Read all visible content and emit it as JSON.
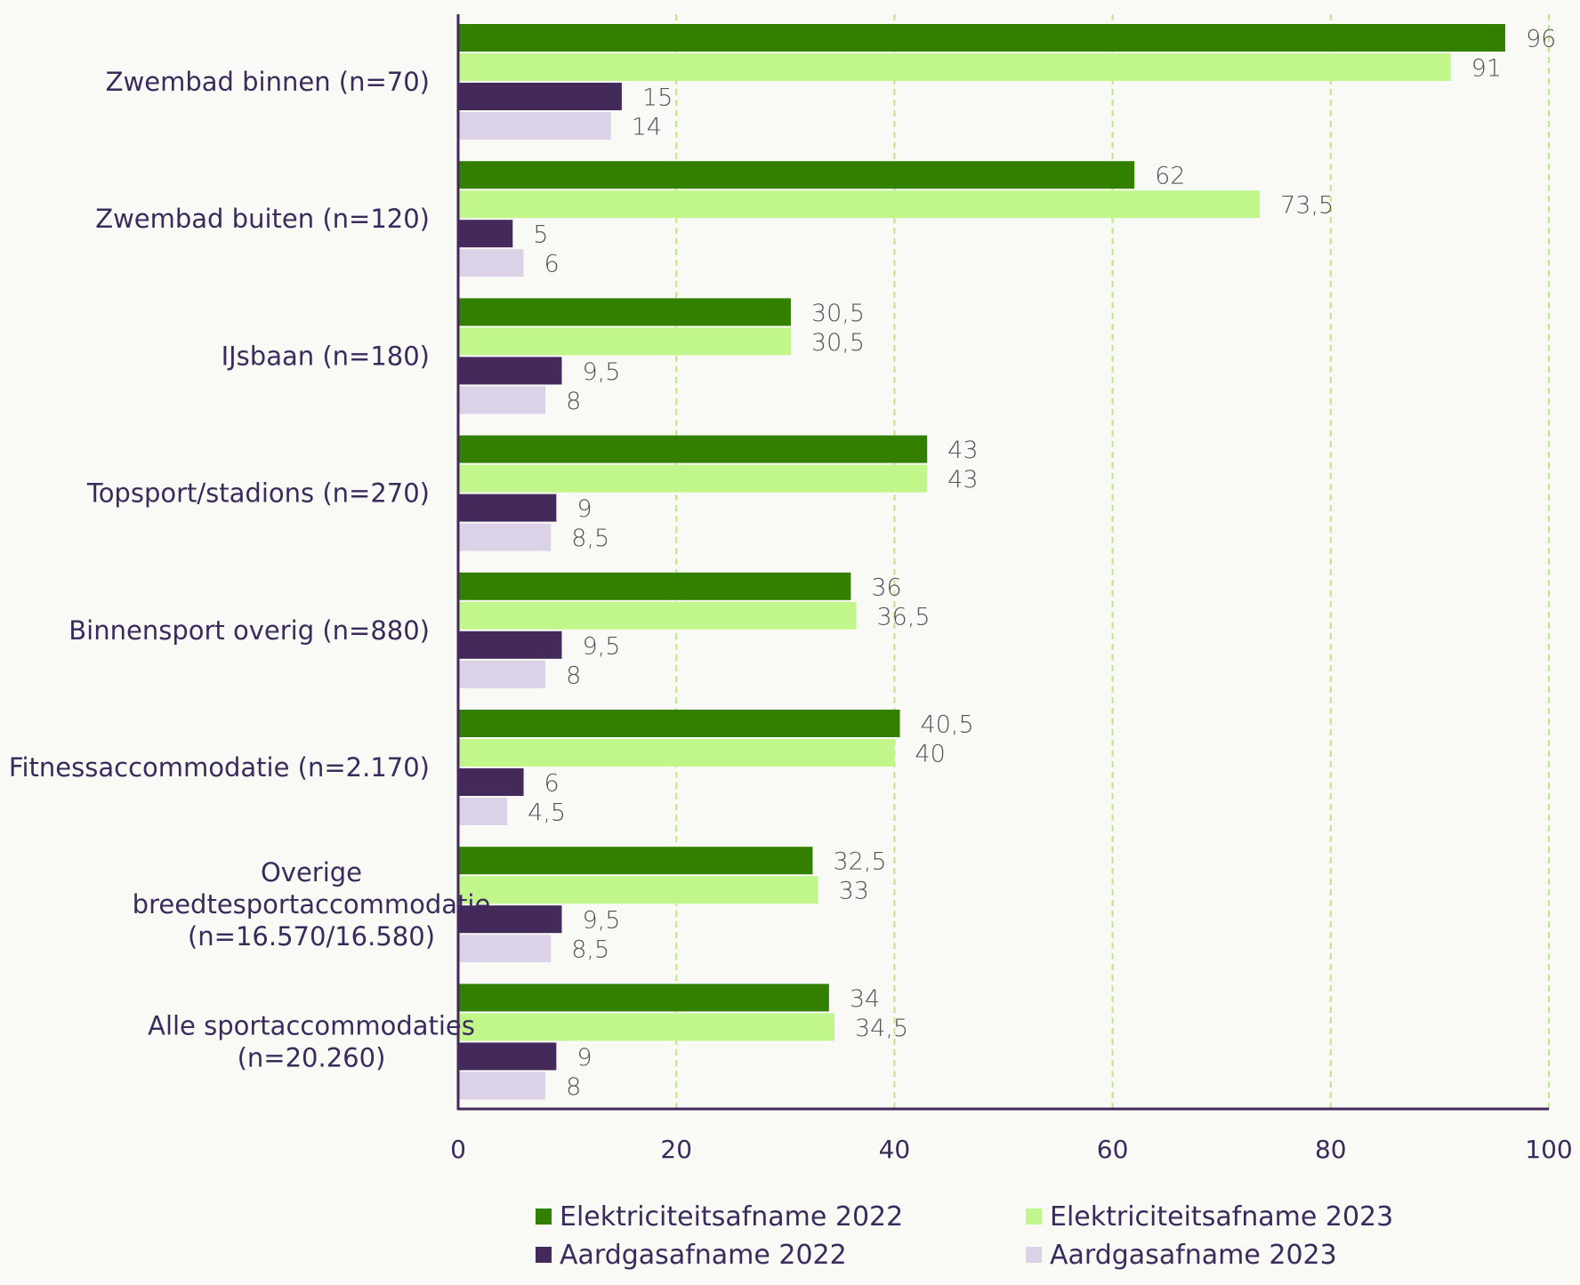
{
  "chart_data": {
    "type": "bar",
    "orientation": "horizontal",
    "categories": [
      "Zwembad binnen (n=70)",
      "Zwembad buiten (n=120)",
      "IJsbaan (n=180)",
      "Topsport/stadions (n=270)",
      "Binnensport overig (n=880)",
      "Fitnessaccommodatie (n=2.170)",
      "Overige breedtesportaccommodatie (n=16.570/16.580)",
      "Alle sportaccommodaties (n=20.260)"
    ],
    "category_lines": [
      [
        "Zwembad binnen (n=70)"
      ],
      [
        "Zwembad buiten (n=120)"
      ],
      [
        "IJsbaan (n=180)"
      ],
      [
        "Topsport/stadions (n=270)"
      ],
      [
        "Binnensport overig (n=880)"
      ],
      [
        "Fitnessaccommodatie (n=2.170)"
      ],
      [
        "Overige",
        "breedtesportaccommodatie",
        "(n=16.570/16.580)"
      ],
      [
        "Alle sportaccommodaties",
        "(n=20.260)"
      ]
    ],
    "series": [
      {
        "name": "Elektriciteitsafname 2022",
        "color": "#338000",
        "values": [
          96,
          62,
          30.5,
          43,
          36,
          40.5,
          32.5,
          34
        ],
        "labels": [
          "96",
          "62",
          "30,5",
          "43",
          "36",
          "40,5",
          "32,5",
          "34"
        ]
      },
      {
        "name": "Elektriciteitsafname 2023",
        "color": "#c1f78a",
        "values": [
          91,
          73.5,
          30.5,
          43,
          36.5,
          40,
          33,
          34.5
        ],
        "labels": [
          "91",
          "73,5",
          "30,5",
          "43",
          "36,5",
          "40",
          "33",
          "34,5"
        ]
      },
      {
        "name": "Aardgasafname 2022",
        "color": "#432a5b",
        "values": [
          15,
          5,
          9.5,
          9,
          9.5,
          6,
          9.5,
          9
        ],
        "labels": [
          "15",
          "5",
          "9,5",
          "9",
          "9,5",
          "6",
          "9,5",
          "9"
        ]
      },
      {
        "name": "Aardgasafname 2023",
        "color": "#dbd2e8",
        "values": [
          14,
          6,
          8,
          8.5,
          8,
          4.5,
          8.5,
          8
        ],
        "labels": [
          "14",
          "6",
          "8",
          "8,5",
          "8",
          "4,5",
          "8,5",
          "8"
        ]
      }
    ],
    "xlim": [
      0,
      100
    ],
    "xticks": [
      0,
      20,
      40,
      60,
      80,
      100
    ],
    "xtick_labels": [
      "0",
      "20",
      "40",
      "60",
      "80",
      "100"
    ],
    "grid": "vertical dashed",
    "grid_color": "#b8ec80",
    "axis_color": "#432a5b",
    "text_color": "#3a2b5c",
    "legend_position": "bottom"
  }
}
